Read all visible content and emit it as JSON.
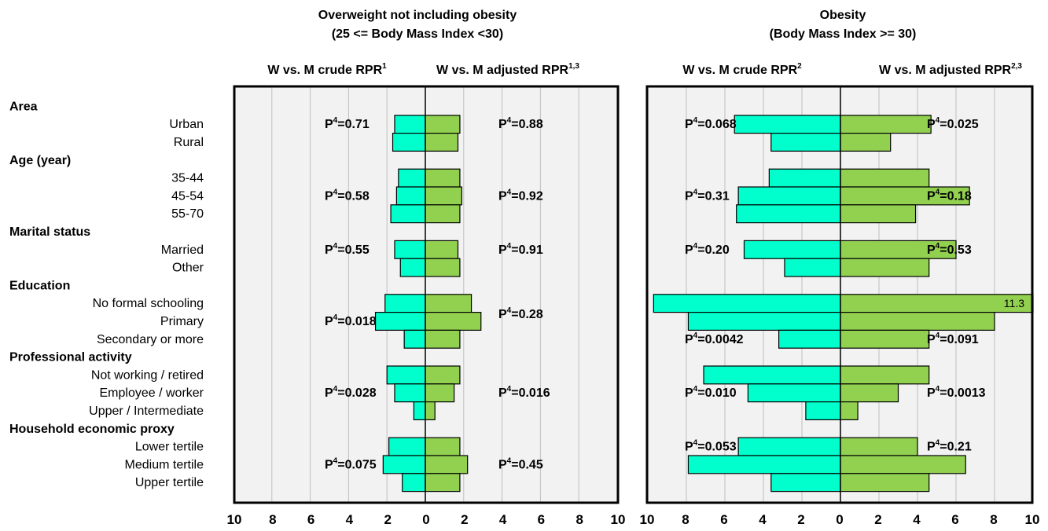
{
  "categories": [
    {
      "label": "Area",
      "type": "group"
    },
    {
      "label": "Urban",
      "type": "item"
    },
    {
      "label": "Rural",
      "type": "item"
    },
    {
      "label": "Age (year)",
      "type": "group"
    },
    {
      "label": "35-44",
      "type": "item"
    },
    {
      "label": "45-54",
      "type": "item"
    },
    {
      "label": "55-70",
      "type": "item"
    },
    {
      "label": "Marital status",
      "type": "group"
    },
    {
      "label": "Married",
      "type": "item"
    },
    {
      "label": "Other",
      "type": "item"
    },
    {
      "label": "Education",
      "type": "group"
    },
    {
      "label": "No formal schooling",
      "type": "item"
    },
    {
      "label": "Primary",
      "type": "item"
    },
    {
      "label": "Secondary or more",
      "type": "item"
    },
    {
      "label": "Professional activity",
      "type": "group"
    },
    {
      "label": "Not working / retired",
      "type": "item"
    },
    {
      "label": "Employee / worker",
      "type": "item"
    },
    {
      "label": "Upper / Intermediate",
      "type": "item"
    },
    {
      "label": "Household economic proxy",
      "type": "group"
    },
    {
      "label": "Lower tertile",
      "type": "item"
    },
    {
      "label": "Medium tertile",
      "type": "item"
    },
    {
      "label": "Upper tertile",
      "type": "item"
    }
  ],
  "colors": {
    "crude": "#00ffcc",
    "adjusted": "#92d050",
    "panel_bg": "#f2f2f2",
    "grid": "#bfbfbf"
  },
  "chart_data": [
    {
      "type": "bar",
      "title": "Overweight not including obesity",
      "subtitle": "(25 <=  Body Mass Index <30)",
      "xlim": [
        -10,
        10
      ],
      "ticks": [
        "10",
        "8",
        "6",
        "4",
        "2",
        "0",
        "2",
        "4",
        "6",
        "8",
        "10"
      ],
      "grid": true,
      "series": [
        {
          "name": "W vs. M crude RPR",
          "sup": "1",
          "direction": "left",
          "color_key": "crude",
          "values": [
            1.6,
            1.7,
            1.4,
            1.5,
            1.8,
            1.6,
            1.3,
            2.1,
            2.6,
            1.1,
            2.0,
            1.6,
            0.6,
            1.9,
            2.2,
            1.2
          ]
        },
        {
          "name": "W vs. M adjusted RPR",
          "sup": "1,3",
          "direction": "right",
          "color_key": "adjusted",
          "values": [
            1.8,
            1.7,
            1.8,
            1.9,
            1.8,
            1.7,
            1.8,
            2.4,
            2.9,
            1.8,
            1.8,
            1.5,
            0.5,
            1.8,
            2.2,
            1.8
          ]
        }
      ],
      "p_labels": [
        {
          "sup": "4",
          "text": "=0.71",
          "side": "left",
          "row": 1
        },
        {
          "sup": "4",
          "text": "=0.88",
          "side": "right",
          "row": 1
        },
        {
          "sup": "4",
          "text": "=0.58",
          "side": "left",
          "row": 5
        },
        {
          "sup": "4",
          "text": "=0.92",
          "side": "right",
          "row": 5
        },
        {
          "sup": "4",
          "text": "=0.55",
          "side": "left",
          "row": 8
        },
        {
          "sup": "4",
          "text": "=0.91",
          "side": "right",
          "row": 8
        },
        {
          "sup": "4",
          "text": "=0.018",
          "side": "left",
          "row": 12
        },
        {
          "sup": "4",
          "text": "=0.28",
          "side": "right",
          "row": 11.6
        },
        {
          "sup": "4",
          "text": "=0.028",
          "side": "left",
          "row": 16
        },
        {
          "sup": "4",
          "text": "=0.016",
          "side": "right",
          "row": 16
        },
        {
          "sup": "4",
          "text": "=0.075",
          "side": "left",
          "row": 20
        },
        {
          "sup": "4",
          "text": "=0.45",
          "side": "right",
          "row": 20
        }
      ]
    },
    {
      "type": "bar",
      "title": "Obesity",
      "subtitle": "(Body Mass Index >= 30)",
      "xlim": [
        -10,
        10
      ],
      "ticks": [
        "10",
        "8",
        "6",
        "4",
        "2",
        "0",
        "2",
        "4",
        "6",
        "8",
        "10"
      ],
      "grid": true,
      "series": [
        {
          "name": "W vs. M crude RPR",
          "sup": "2",
          "direction": "left",
          "color_key": "crude",
          "values": [
            5.5,
            3.6,
            3.7,
            5.3,
            5.4,
            5.0,
            2.9,
            9.7,
            7.9,
            3.2,
            7.1,
            4.8,
            1.8,
            5.3,
            7.9,
            3.6
          ]
        },
        {
          "name": "W vs. M adjusted RPR",
          "sup": "2,3",
          "direction": "right",
          "color_key": "adjusted",
          "values": [
            4.7,
            2.6,
            4.6,
            6.7,
            3.9,
            6.0,
            4.6,
            11.3,
            8.0,
            4.6,
            4.6,
            3.0,
            0.9,
            4.0,
            6.5,
            4.6
          ]
        }
      ],
      "value_labels": [
        {
          "text": "11.3",
          "series": 1,
          "index": 7
        }
      ],
      "p_labels": [
        {
          "sup": "4",
          "text": "=0.068",
          "side": "left",
          "row": 1
        },
        {
          "sup": "4",
          "text": "=0.025",
          "side": "right",
          "row": 1
        },
        {
          "sup": "4",
          "text": "=0.31",
          "side": "left",
          "row": 5
        },
        {
          "sup": "4",
          "text": "=0.18",
          "side": "right",
          "row": 5
        },
        {
          "sup": "4",
          "text": "=0.20",
          "side": "left",
          "row": 8
        },
        {
          "sup": "4",
          "text": "=0.53",
          "side": "right",
          "row": 8
        },
        {
          "sup": "4",
          "text": "=0.0042",
          "side": "left",
          "row": 13
        },
        {
          "sup": "4",
          "text": "=0.091",
          "side": "right",
          "row": 13
        },
        {
          "sup": "4",
          "text": "=0.010",
          "side": "left",
          "row": 16
        },
        {
          "sup": "4",
          "text": "=0.0013",
          "side": "right",
          "row": 16
        },
        {
          "sup": "4",
          "text": "=0.053",
          "side": "left",
          "row": 19
        },
        {
          "sup": "4",
          "text": "=0.21",
          "side": "right",
          "row": 19
        }
      ]
    }
  ]
}
